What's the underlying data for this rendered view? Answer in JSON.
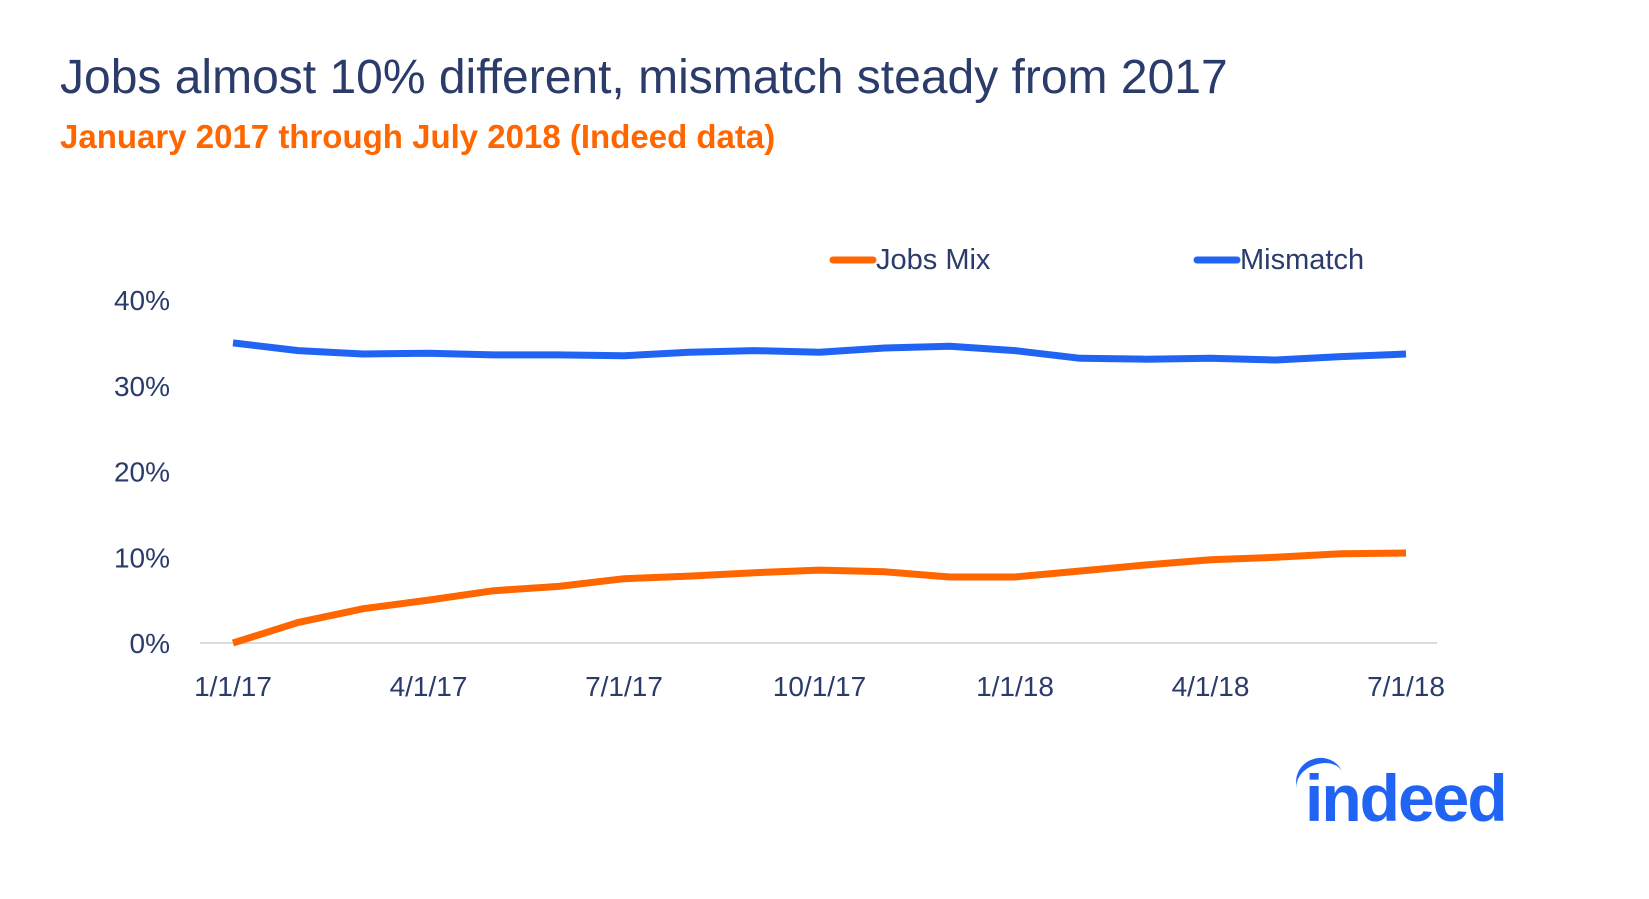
{
  "title": "Jobs almost 10% different, mismatch steady from 2017",
  "subtitle": "January 2017 through July 2018 (Indeed data)",
  "logo_text": "indeed",
  "chart_data": {
    "type": "line",
    "title": "Jobs almost 10% different, mismatch steady from 2017",
    "subtitle": "January 2017 through July 2018 (Indeed data)",
    "xlabel": "",
    "ylabel": "",
    "ylim": [
      0,
      40
    ],
    "yticks": [
      "0%",
      "10%",
      "20%",
      "30%",
      "40%"
    ],
    "xticks": [
      "1/1/17",
      "4/1/17",
      "7/1/17",
      "10/1/17",
      "1/1/18",
      "4/1/18",
      "7/1/18"
    ],
    "x": [
      "1/1/17",
      "2/1/17",
      "3/1/17",
      "4/1/17",
      "5/1/17",
      "6/1/17",
      "7/1/17",
      "8/1/17",
      "9/1/17",
      "10/1/17",
      "11/1/17",
      "12/1/17",
      "1/1/18",
      "2/1/18",
      "3/1/18",
      "4/1/18",
      "5/1/18",
      "6/1/18",
      "7/1/18"
    ],
    "grid": false,
    "legend_position": "top-right",
    "series": [
      {
        "name": "Jobs Mix",
        "color": "#ff6600",
        "values": [
          0.0,
          2.4,
          4.0,
          5.0,
          6.1,
          6.6,
          7.5,
          7.8,
          8.2,
          8.5,
          8.3,
          7.7,
          7.7,
          8.4,
          9.1,
          9.7,
          10.0,
          10.4,
          10.5
        ]
      },
      {
        "name": "Mismatch",
        "color": "#2164f3",
        "values": [
          35.0,
          34.1,
          33.7,
          33.8,
          33.6,
          33.6,
          33.5,
          33.9,
          34.1,
          33.9,
          34.4,
          34.6,
          34.1,
          33.2,
          33.1,
          33.2,
          33.0,
          33.4,
          33.7
        ]
      }
    ]
  }
}
